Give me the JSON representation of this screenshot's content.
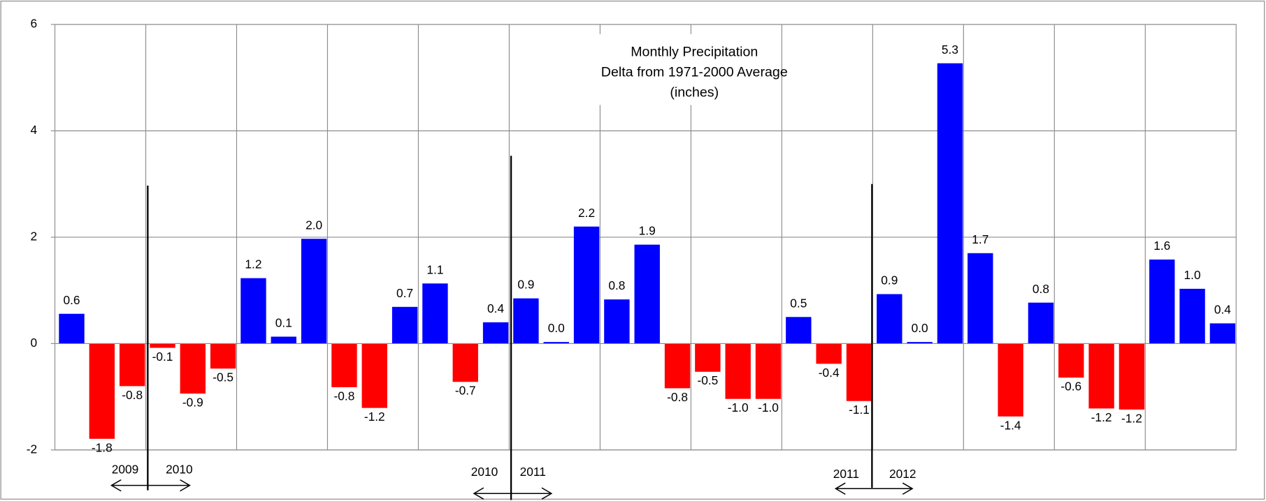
{
  "chart_data": {
    "type": "bar",
    "title": [
      "Monthly Precipitation",
      "Delta from 1971-2000 Average",
      "(inches)"
    ],
    "categories": [
      null,
      null,
      null,
      null,
      null,
      null,
      null,
      null,
      null,
      null,
      null,
      null,
      null,
      null,
      null,
      null,
      null,
      null,
      null,
      null,
      null,
      null,
      null,
      null,
      null,
      null,
      null,
      null,
      null,
      null,
      null,
      null,
      null,
      null,
      null,
      null,
      null,
      null,
      null
    ],
    "values": [
      0.56,
      -1.79,
      -0.8,
      -0.08,
      -0.94,
      -0.47,
      1.23,
      0.13,
      1.97,
      -0.82,
      -1.21,
      0.69,
      1.13,
      -0.72,
      0.4,
      0.85,
      0.03,
      2.2,
      0.83,
      1.86,
      -0.84,
      -0.53,
      -1.04,
      -1.04,
      0.5,
      -0.38,
      -1.08,
      0.93,
      0.03,
      5.27,
      1.7,
      -1.37,
      0.77,
      -0.64,
      -1.22,
      -1.24,
      1.58,
      1.03,
      0.38
    ],
    "value_labels": [
      "0.6",
      "-1.8",
      "-0.8",
      "-0.1",
      "-0.9",
      "-0.5",
      "1.2",
      "0.1",
      "2.0",
      "-0.8",
      "-1.2",
      "0.7",
      "1.1",
      "-0.7",
      "0.4",
      "0.9",
      "0.0",
      "2.2",
      "0.8",
      "1.9",
      "-0.8",
      "-0.5",
      "-1.0",
      "-1.0",
      "0.5",
      "-0.4",
      "-1.1",
      "0.9",
      "0.0",
      "5.3",
      "1.7",
      "-1.4",
      "0.8",
      "-0.6",
      "-1.2",
      "-1.2",
      "1.6",
      "1.0",
      "0.4"
    ],
    "color_positive": "#0000FF",
    "color_negative": "#FF0000",
    "ylim": [
      -2,
      6
    ],
    "yticks": [
      -2,
      0,
      2,
      4,
      6
    ],
    "grid": true,
    "year_markers": [
      {
        "left": "2009",
        "right": "2010"
      },
      {
        "left": "2010",
        "right": "2011"
      },
      {
        "left": "2011",
        "right": "2012"
      }
    ]
  }
}
